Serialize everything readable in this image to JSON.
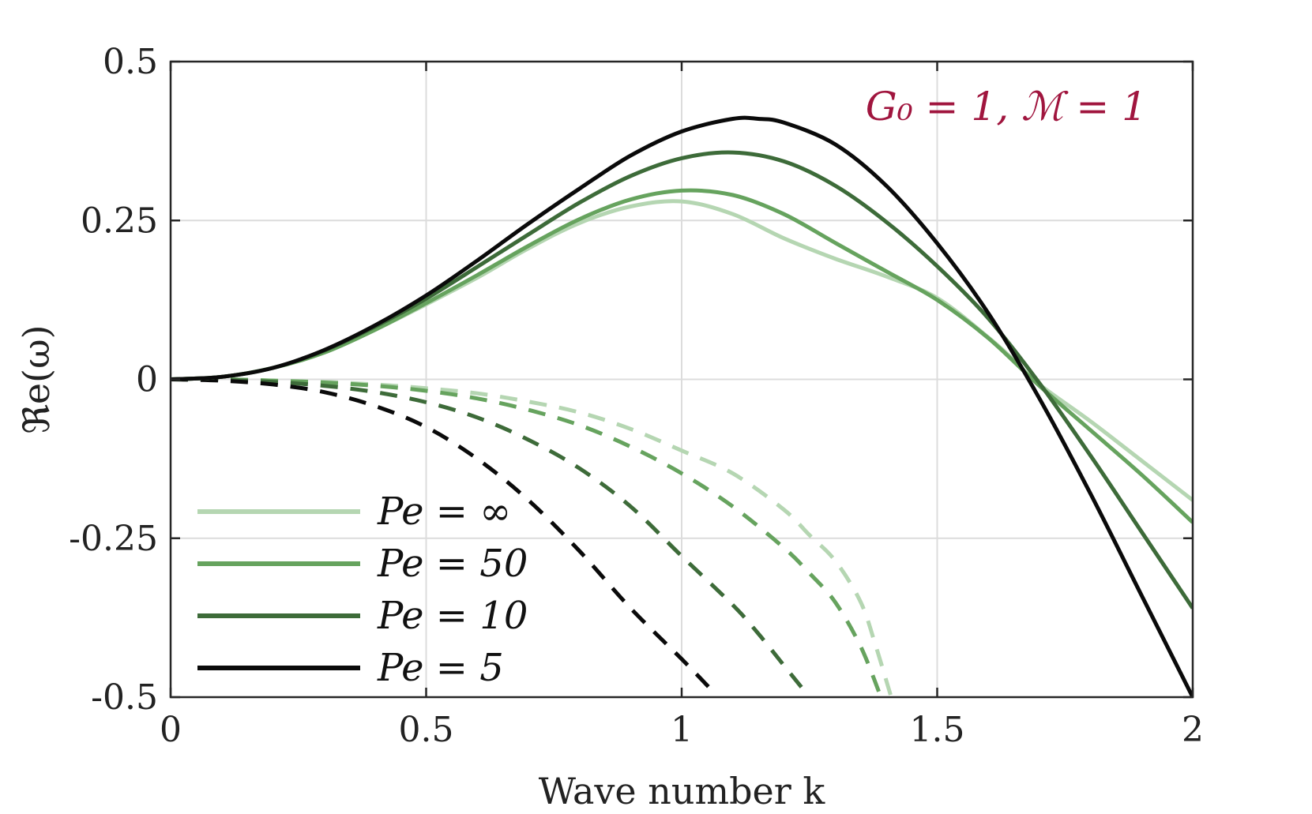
{
  "chart_data": {
    "type": "line",
    "title": "",
    "xlabel": "Wave number k",
    "ylabel": "ℜe(ω)",
    "xlim": [
      0,
      2
    ],
    "ylim": [
      -0.5,
      0.5
    ],
    "xticks": [
      0,
      0.5,
      1,
      1.5,
      2
    ],
    "xtick_labels": [
      "0",
      "0.5",
      "1",
      "1.5",
      "2"
    ],
    "yticks": [
      0.5,
      0.25,
      0,
      -0.25,
      -0.5
    ],
    "ytick_labels": [
      "0.5",
      "0.25",
      "0",
      "-0.25",
      "-0.5"
    ],
    "grid": true,
    "legend_position": "bottom-left",
    "annotation": {
      "text": "G₀ = 1, ℳ = 1",
      "color": "#a0153e"
    },
    "series": [
      {
        "name": "Pe = ∞",
        "color": "#b5d6b2",
        "solid": {
          "x": [
            0,
            0.1,
            0.2,
            0.3,
            0.4,
            0.5,
            0.6,
            0.7,
            0.8,
            0.9,
            1.0,
            1.1,
            1.2,
            1.3,
            1.4,
            1.5,
            1.6,
            1.65,
            1.7,
            1.8,
            1.9,
            2.0
          ],
          "y": [
            0,
            0.004,
            0.018,
            0.042,
            0.078,
            0.118,
            0.16,
            0.206,
            0.246,
            0.272,
            0.28,
            0.26,
            0.222,
            0.19,
            0.162,
            0.128,
            0.066,
            0.03,
            -0.008,
            -0.066,
            -0.128,
            -0.19
          ]
        },
        "dashed": {
          "x": [
            0,
            0.1,
            0.2,
            0.3,
            0.4,
            0.5,
            0.6,
            0.7,
            0.8,
            0.9,
            1.0,
            1.1,
            1.2,
            1.25,
            1.3,
            1.35,
            1.38,
            1.41
          ],
          "y": [
            0,
            0,
            -0.002,
            -0.004,
            -0.008,
            -0.014,
            -0.022,
            -0.035,
            -0.052,
            -0.078,
            -0.112,
            -0.148,
            -0.205,
            -0.245,
            -0.285,
            -0.35,
            -0.42,
            -0.5
          ]
        }
      },
      {
        "name": "Pe = 50",
        "color": "#66a35e",
        "solid": {
          "x": [
            0,
            0.1,
            0.2,
            0.3,
            0.4,
            0.5,
            0.6,
            0.7,
            0.8,
            0.9,
            1.0,
            1.1,
            1.2,
            1.3,
            1.4,
            1.5,
            1.6,
            1.7,
            1.8,
            1.9,
            2.0
          ],
          "y": [
            0,
            0.004,
            0.018,
            0.042,
            0.078,
            0.12,
            0.164,
            0.21,
            0.252,
            0.283,
            0.297,
            0.29,
            0.26,
            0.215,
            0.17,
            0.125,
            0.065,
            -0.01,
            -0.08,
            -0.15,
            -0.225
          ]
        },
        "dashed": {
          "x": [
            0,
            0.1,
            0.2,
            0.3,
            0.4,
            0.5,
            0.6,
            0.7,
            0.8,
            0.9,
            1.0,
            1.1,
            1.2,
            1.25,
            1.3,
            1.35,
            1.39
          ],
          "y": [
            0,
            0,
            -0.002,
            -0.005,
            -0.01,
            -0.018,
            -0.03,
            -0.048,
            -0.072,
            -0.106,
            -0.148,
            -0.2,
            -0.265,
            -0.305,
            -0.35,
            -0.42,
            -0.5
          ]
        }
      },
      {
        "name": "Pe = 10",
        "color": "#3d6b39",
        "solid": {
          "x": [
            0,
            0.1,
            0.2,
            0.3,
            0.4,
            0.5,
            0.6,
            0.7,
            0.8,
            0.9,
            1.0,
            1.1,
            1.2,
            1.3,
            1.4,
            1.5,
            1.6,
            1.7,
            1.8,
            1.9,
            2.0
          ],
          "y": [
            0,
            0.004,
            0.018,
            0.045,
            0.083,
            0.127,
            0.177,
            0.228,
            0.278,
            0.32,
            0.348,
            0.357,
            0.343,
            0.305,
            0.248,
            0.178,
            0.096,
            -0.006,
            -0.12,
            -0.24,
            -0.36
          ]
        },
        "dashed": {
          "x": [
            0,
            0.1,
            0.2,
            0.3,
            0.4,
            0.5,
            0.6,
            0.7,
            0.8,
            0.9,
            1.0,
            1.1,
            1.15,
            1.2,
            1.24
          ],
          "y": [
            0,
            -0.001,
            -0.004,
            -0.01,
            -0.02,
            -0.036,
            -0.06,
            -0.095,
            -0.14,
            -0.2,
            -0.278,
            -0.355,
            -0.4,
            -0.45,
            -0.49
          ]
        }
      },
      {
        "name": "Pe = 5",
        "color": "#0a0a0a",
        "solid": {
          "x": [
            0,
            0.1,
            0.2,
            0.3,
            0.4,
            0.5,
            0.6,
            0.7,
            0.8,
            0.9,
            1.0,
            1.1,
            1.15,
            1.2,
            1.3,
            1.4,
            1.5,
            1.6,
            1.7,
            1.8,
            1.9,
            2.0
          ],
          "y": [
            0,
            0.004,
            0.018,
            0.046,
            0.085,
            0.132,
            0.187,
            0.245,
            0.3,
            0.352,
            0.39,
            0.41,
            0.41,
            0.404,
            0.37,
            0.305,
            0.214,
            0.104,
            -0.03,
            -0.18,
            -0.34,
            -0.5
          ]
        },
        "dashed": {
          "x": [
            0,
            0.1,
            0.2,
            0.3,
            0.4,
            0.5,
            0.6,
            0.7,
            0.8,
            0.9,
            1.0,
            1.06
          ],
          "y": [
            0,
            -0.002,
            -0.008,
            -0.02,
            -0.042,
            -0.075,
            -0.125,
            -0.19,
            -0.27,
            -0.36,
            -0.44,
            -0.49
          ]
        }
      }
    ]
  }
}
